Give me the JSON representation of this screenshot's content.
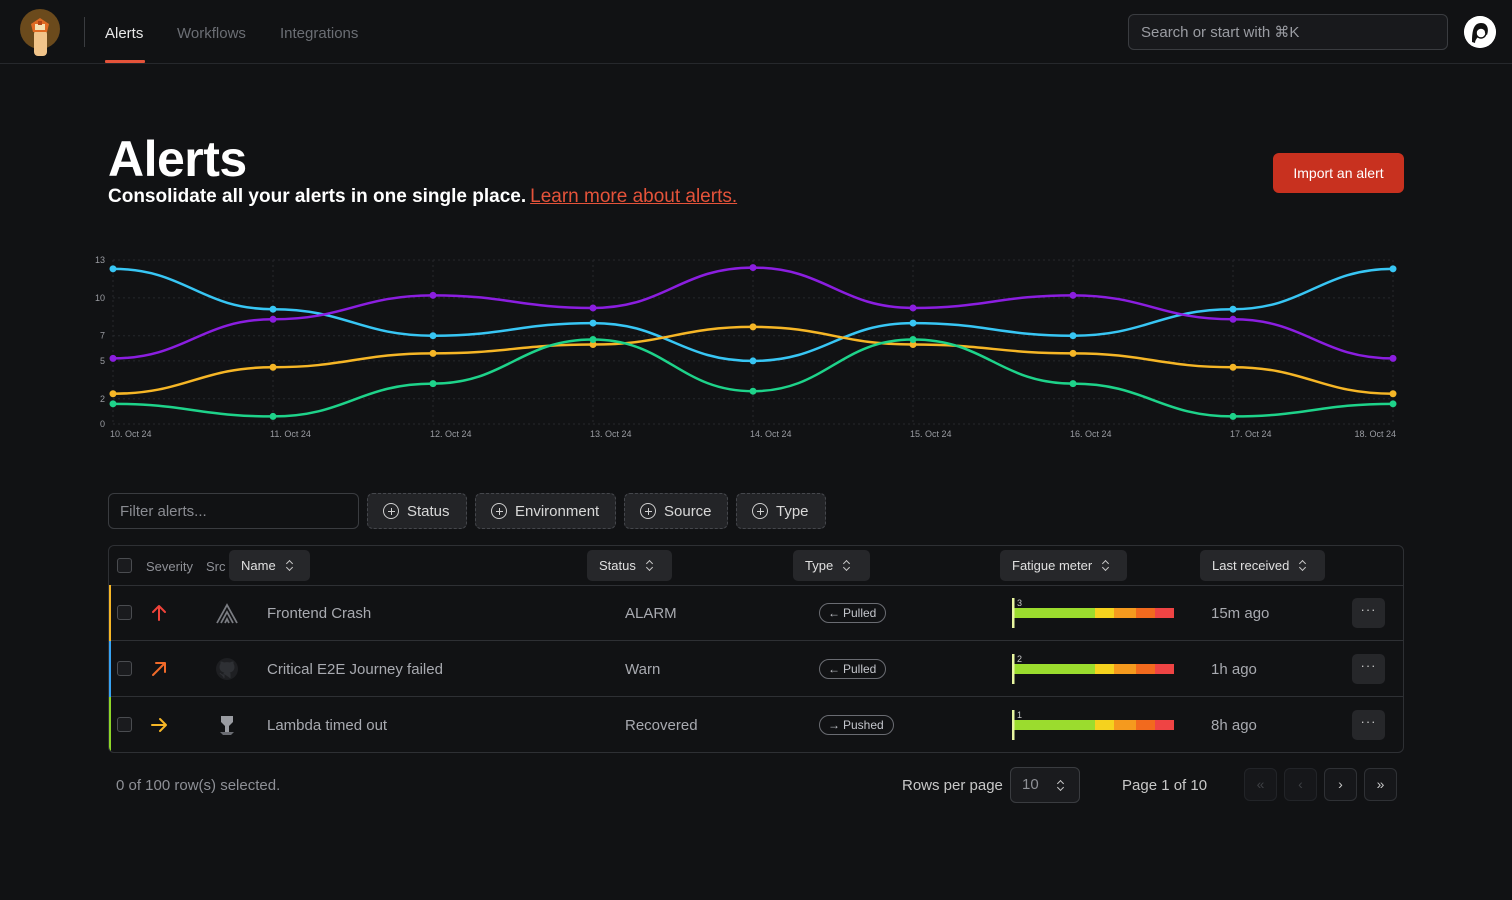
{
  "nav": {
    "tabs": [
      {
        "label": "Alerts",
        "active": true
      },
      {
        "label": "Workflows",
        "active": false
      },
      {
        "label": "Integrations",
        "active": false
      }
    ],
    "search_placeholder": "Search or start with ⌘K",
    "accent_color": "#e5533a"
  },
  "header": {
    "title": "Alerts",
    "subtitle": "Consolidate all your alerts in one single place.",
    "learn_more": "Learn more about alerts.",
    "import_button": "Import an alert"
  },
  "chart_data": {
    "type": "line",
    "x": [
      "10. Oct 24",
      "11. Oct 24",
      "12. Oct 24",
      "13. Oct 24",
      "14. Oct 24",
      "15. Oct 24",
      "16. Oct 24",
      "17. Oct 24",
      "18. Oct 24"
    ],
    "y_ticks": [
      0,
      2,
      5,
      7,
      10,
      13
    ],
    "ylim": [
      0,
      13
    ],
    "grid": true,
    "series": [
      {
        "color": "#38c6f4",
        "values": [
          12.3,
          9.1,
          7.0,
          8.0,
          5.0,
          8.0,
          7.0,
          9.1,
          12.3
        ]
      },
      {
        "color": "#8b1ee0",
        "values": [
          5.2,
          8.3,
          10.2,
          9.2,
          12.4,
          9.2,
          10.2,
          8.3,
          5.2
        ]
      },
      {
        "color": "#f6b626",
        "values": [
          2.4,
          4.5,
          5.6,
          6.3,
          7.7,
          6.3,
          5.6,
          4.5,
          2.4
        ]
      },
      {
        "color": "#1ed38a",
        "values": [
          1.6,
          0.6,
          3.2,
          6.7,
          2.6,
          6.7,
          3.2,
          0.6,
          1.6
        ]
      }
    ]
  },
  "filters": {
    "placeholder": "Filter alerts...",
    "buttons": [
      "Status",
      "Environment",
      "Source",
      "Type"
    ]
  },
  "table": {
    "headers": {
      "severity": "Severity",
      "src": "Src",
      "name": "Name",
      "status": "Status",
      "type": "Type",
      "fatigue": "Fatigue meter",
      "last_received": "Last received"
    },
    "rows": [
      {
        "severity": "critical",
        "severity_color": "#f6b626",
        "severity_icon": "arrow-up-icon",
        "source": "sentry-icon",
        "name": "Frontend Crash",
        "status": "ALARM",
        "type": "Pulled",
        "type_icon": "arrow-left-icon",
        "fatigue": 3,
        "last_received": "15m ago"
      },
      {
        "severity": "high",
        "severity_color": "#38a3f4",
        "severity_icon": "arrow-up-right-icon",
        "source": "github-icon",
        "name": "Critical E2E Journey failed",
        "status": "Warn",
        "type": "Pulled",
        "type_icon": "arrow-left-icon",
        "fatigue": 2,
        "last_received": "1h ago"
      },
      {
        "severity": "medium",
        "severity_color": "#8ed628",
        "severity_icon": "arrow-right-icon",
        "source": "aws-lambda-icon",
        "name": "Lambda timed out",
        "status": "Recovered",
        "type": "Pushed",
        "type_icon": "arrow-right-icon",
        "fatigue": 1,
        "last_received": "8h ago"
      }
    ]
  },
  "footer": {
    "selection": "0 of 100 row(s) selected.",
    "rows_per_page_label": "Rows per page",
    "rows_per_page": "10",
    "page_label": "Page 1 of 10"
  }
}
